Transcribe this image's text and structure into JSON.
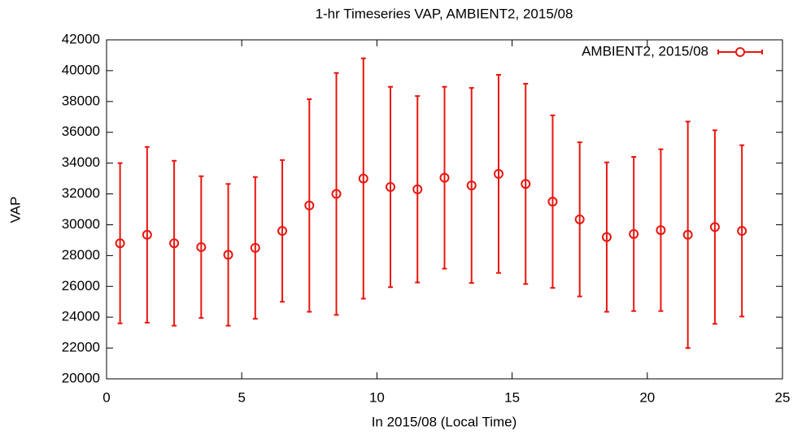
{
  "chart_data": {
    "type": "errorbar",
    "title": "1-hr Timeseries VAP, AMBIENT2, 2015/08",
    "x_label": "In 2015/08 (Local Time)",
    "y_label": "VAP",
    "x": [
      0.5,
      1.5,
      2.5,
      3.5,
      4.5,
      5.5,
      6.5,
      7.5,
      8.5,
      9.5,
      10.5,
      11.5,
      12.5,
      13.5,
      14.5,
      15.5,
      16.5,
      17.5,
      18.5,
      19.5,
      20.5,
      21.5,
      22.5,
      23.5
    ],
    "series": [
      {
        "name": "AMBIENT2, 2015/08",
        "color": "#e8160e",
        "values": [
          28800,
          29350,
          28800,
          28550,
          28050,
          28500,
          29600,
          31250,
          32000,
          33000,
          32450,
          32300,
          33050,
          32550,
          33300,
          32650,
          31500,
          30350,
          29200,
          29400,
          29650,
          29350,
          29850,
          29600
        ],
        "errors": [
          5200,
          5700,
          5350,
          4600,
          4600,
          4600,
          4600,
          6900,
          7850,
          7800,
          6500,
          6050,
          5900,
          6330,
          6430,
          6500,
          5600,
          5000,
          4850,
          5000,
          5250,
          7350,
          6280,
          5560
        ]
      }
    ],
    "xlim": [
      0,
      25
    ],
    "xticks": [
      0,
      5,
      10,
      15,
      20,
      25
    ],
    "ylim": [
      20000,
      42000
    ],
    "yticks": [
      20000,
      22000,
      24000,
      26000,
      28000,
      30000,
      32000,
      34000,
      36000,
      38000,
      40000,
      42000
    ],
    "legend": "top-right",
    "grid": false
  }
}
